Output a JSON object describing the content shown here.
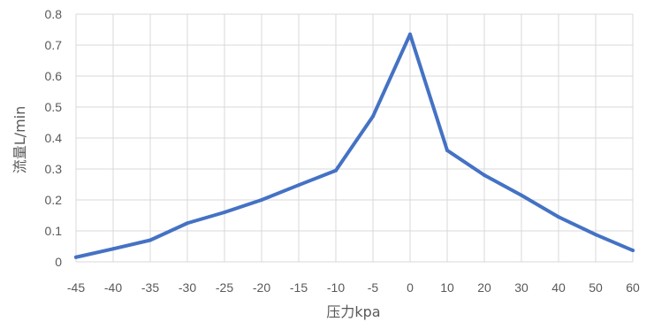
{
  "chart_data": {
    "type": "line",
    "title": "",
    "xlabel": "压力kpa",
    "ylabel": "流量L/min",
    "categories": [
      "-45",
      "-40",
      "-35",
      "-30",
      "-25",
      "-20",
      "-15",
      "-10",
      "-5",
      "0",
      "10",
      "20",
      "30",
      "40",
      "50",
      "60"
    ],
    "y_ticks": [
      "0",
      "0.1",
      "0.2",
      "0.3",
      "0.4",
      "0.5",
      "0.6",
      "0.7",
      "0.8"
    ],
    "ylim": [
      0,
      0.8
    ],
    "grid": "vertical and horizontal",
    "legend": "none",
    "series": [
      {
        "color": "#4472c4",
        "values": [
          0.015,
          0.042,
          0.07,
          0.125,
          0.16,
          0.2,
          0.248,
          0.295,
          0.47,
          0.735,
          0.36,
          0.28,
          0.215,
          0.145,
          0.088,
          0.037
        ]
      }
    ]
  }
}
